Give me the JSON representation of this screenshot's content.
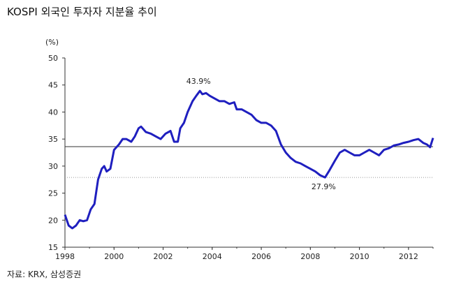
{
  "title": "KOSPI 외국인 투자자 지분율 추이",
  "source": "자료: KRX, 삼성증권",
  "chart_data": {
    "type": "line",
    "ylabel": "(%)",
    "xlabel": "",
    "xlim": [
      1998,
      2013
    ],
    "ylim": [
      15,
      50
    ],
    "x_ticks": [
      "1998",
      "2000",
      "2002",
      "2004",
      "2006",
      "2008",
      "2010",
      "2012"
    ],
    "y_ticks": [
      "15",
      "20",
      "25",
      "30",
      "35",
      "40",
      "45",
      "50"
    ],
    "series_color": "#1f1fbf",
    "reference_line": 33.6,
    "reference_line_color": "#333333",
    "dotted_line": 27.9,
    "dotted_line_color": "#999999",
    "annotations": [
      {
        "x": 2003.5,
        "y": 43.9,
        "label": "43.9%"
      },
      {
        "x": 2008.6,
        "y": 27.9,
        "label": "27.9%"
      }
    ],
    "series": [
      {
        "x": [
          1998.0,
          1998.15,
          1998.3,
          1998.45,
          1998.6,
          1998.75,
          1998.9,
          1999.05,
          1999.2,
          1999.35,
          1999.5,
          1999.6,
          1999.7,
          1999.85,
          2000.0,
          2000.2,
          2000.35,
          2000.5,
          2000.7,
          2000.85,
          2001.0,
          2001.1,
          2001.3,
          2001.5,
          2001.7,
          2001.9,
          2002.1,
          2002.3,
          2002.45,
          2002.6,
          2002.7,
          2002.85,
          2003.0,
          2003.2,
          2003.35,
          2003.5,
          2003.6,
          2003.75,
          2003.9,
          2004.1,
          2004.3,
          2004.5,
          2004.7,
          2004.9,
          2005.0,
          2005.2,
          2005.4,
          2005.6,
          2005.8,
          2006.0,
          2006.2,
          2006.4,
          2006.6,
          2006.8,
          2007.0,
          2007.2,
          2007.4,
          2007.6,
          2007.8,
          2008.0,
          2008.2,
          2008.4,
          2008.6,
          2008.75,
          2009.0,
          2009.2,
          2009.4,
          2009.6,
          2009.8,
          2010.0,
          2010.2,
          2010.4,
          2010.6,
          2010.8,
          2011.0,
          2011.2,
          2011.4,
          2011.6,
          2011.8,
          2012.0,
          2012.2,
          2012.4,
          2012.6,
          2012.75,
          2012.88,
          2013.0
        ],
        "values": [
          21.0,
          19.0,
          18.5,
          19.0,
          20.0,
          19.8,
          20.0,
          22.0,
          23.0,
          27.5,
          29.5,
          30.0,
          29.0,
          29.5,
          33.0,
          34.0,
          35.0,
          35.0,
          34.5,
          35.5,
          37.0,
          37.3,
          36.3,
          36.0,
          35.5,
          35.0,
          36.0,
          36.5,
          34.5,
          34.5,
          37.0,
          38.0,
          40.0,
          42.0,
          43.0,
          43.9,
          43.3,
          43.5,
          43.0,
          42.5,
          42.0,
          42.0,
          41.5,
          41.8,
          40.5,
          40.5,
          40.0,
          39.5,
          38.5,
          38.0,
          38.0,
          37.5,
          36.5,
          34.0,
          32.5,
          31.5,
          30.8,
          30.5,
          30.0,
          29.5,
          29.0,
          28.3,
          27.9,
          29.0,
          31.0,
          32.5,
          33.0,
          32.5,
          32.0,
          32.0,
          32.5,
          33.0,
          32.5,
          32.0,
          33.0,
          33.3,
          33.8,
          34.0,
          34.3,
          34.5,
          34.8,
          35.0,
          34.3,
          34.0,
          33.5,
          35.2
        ]
      }
    ]
  }
}
